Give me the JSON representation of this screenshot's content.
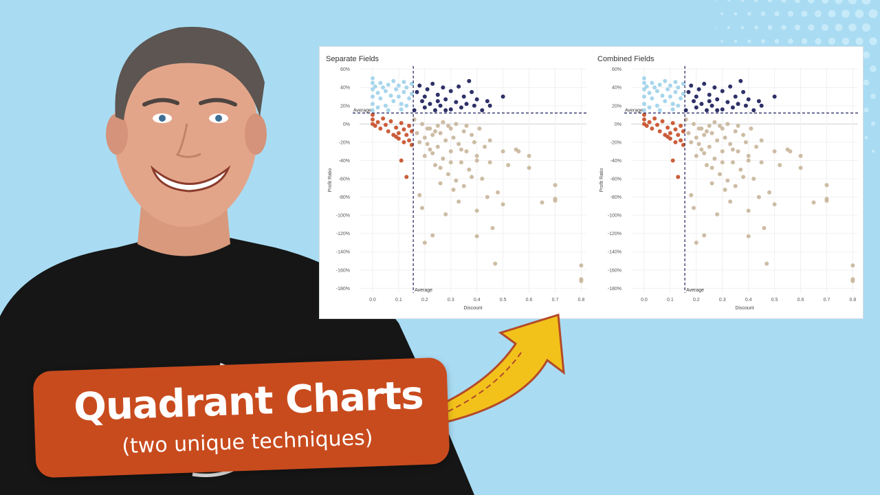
{
  "colors": {
    "background": "#a9dcf3",
    "quadrant_low_discount_high_profit": "#9fd3ea",
    "quadrant_high_discount_high_profit": "#1c1f5a",
    "quadrant_low_discount_low_profit": "#c8502a",
    "quadrant_high_discount_low_profit": "#c9b69c",
    "banner": "#c84b1e",
    "arrow": "#f2c21b",
    "arrow_stripe": "#b34a2a"
  },
  "banner": {
    "title": "Quadrant Charts",
    "subtitle": "(two unique techniques)"
  },
  "icons": {
    "arrow": "curved-arrow-icon"
  },
  "chart_data": [
    {
      "type": "scatter",
      "title": "Separate Fields",
      "xlabel": "Discount",
      "ylabel": "Profit Ratio",
      "xlim": [
        -0.05,
        0.82
      ],
      "ylim": [
        -1.85,
        0.62
      ],
      "x_ticks": [
        "0.0",
        "0.1",
        "0.2",
        "0.3",
        "0.4",
        "0.5",
        "0.6",
        "0.7",
        "0.8"
      ],
      "y_ticks": [
        "60%",
        "40%",
        "20%",
        "0%",
        "-20%",
        "-40%",
        "-60%",
        "-80%",
        "-100%",
        "-120%",
        "-140%",
        "-160%",
        "-180%"
      ],
      "grid": true,
      "reference_lines": {
        "x_average": 0.156,
        "y_average": 0.12,
        "x_average_label": "Average",
        "y_average_label": "Average"
      }
    },
    {
      "type": "scatter",
      "title": "Combined Fields",
      "xlabel": "Discount",
      "ylabel": "Profit Ratio",
      "xlim": [
        -0.05,
        0.82
      ],
      "ylim": [
        -1.85,
        0.62
      ],
      "x_ticks": [
        "0.0",
        "0.1",
        "0.2",
        "0.3",
        "0.4",
        "0.5",
        "0.6",
        "0.7",
        "0.8"
      ],
      "y_ticks": [
        "60%",
        "40%",
        "20%",
        "0%",
        "-20%",
        "-40%",
        "-60%",
        "-80%",
        "-100%",
        "-120%",
        "-140%",
        "-160%",
        "-180%"
      ],
      "grid": true,
      "reference_lines": {
        "x_average": 0.156,
        "y_average": 0.12,
        "x_average_label": "Average",
        "y_average_label": "Average"
      }
    }
  ],
  "points": [
    [
      0.0,
      0.5
    ],
    [
      0.0,
      0.45
    ],
    [
      0.0,
      0.38
    ],
    [
      0.0,
      0.3
    ],
    [
      0.0,
      0.22
    ],
    [
      0.0,
      0.15
    ],
    [
      0.0,
      0.1
    ],
    [
      0.01,
      0.41
    ],
    [
      0.02,
      0.34
    ],
    [
      0.03,
      0.45
    ],
    [
      0.03,
      0.28
    ],
    [
      0.04,
      0.4
    ],
    [
      0.05,
      0.36
    ],
    [
      0.05,
      0.2
    ],
    [
      0.06,
      0.43
    ],
    [
      0.07,
      0.31
    ],
    [
      0.08,
      0.47
    ],
    [
      0.08,
      0.25
    ],
    [
      0.09,
      0.38
    ],
    [
      0.1,
      0.42
    ],
    [
      0.1,
      0.3
    ],
    [
      0.11,
      0.22
    ],
    [
      0.12,
      0.46
    ],
    [
      0.12,
      0.35
    ],
    [
      0.13,
      0.4
    ],
    [
      0.14,
      0.28
    ],
    [
      0.15,
      0.44
    ],
    [
      0.15,
      0.33
    ],
    [
      0.02,
      0.18
    ],
    [
      0.06,
      0.15
    ],
    [
      0.11,
      0.16
    ],
    [
      0.13,
      0.2
    ],
    [
      0.16,
      0.15
    ],
    [
      0.17,
      0.35
    ],
    [
      0.18,
      0.42
    ],
    [
      0.19,
      0.25
    ],
    [
      0.2,
      0.3
    ],
    [
      0.2,
      0.18
    ],
    [
      0.21,
      0.38
    ],
    [
      0.22,
      0.22
    ],
    [
      0.23,
      0.44
    ],
    [
      0.24,
      0.15
    ],
    [
      0.25,
      0.32
    ],
    [
      0.26,
      0.2
    ],
    [
      0.27,
      0.4
    ],
    [
      0.28,
      0.27
    ],
    [
      0.3,
      0.36
    ],
    [
      0.3,
      0.16
    ],
    [
      0.32,
      0.24
    ],
    [
      0.33,
      0.41
    ],
    [
      0.34,
      0.18
    ],
    [
      0.35,
      0.3
    ],
    [
      0.36,
      0.22
    ],
    [
      0.37,
      0.47
    ],
    [
      0.38,
      0.35
    ],
    [
      0.39,
      0.2
    ],
    [
      0.4,
      0.27
    ],
    [
      0.42,
      0.15
    ],
    [
      0.44,
      0.25
    ],
    [
      0.45,
      0.2
    ],
    [
      0.5,
      0.3
    ],
    [
      0.28,
      0.15
    ],
    [
      0.25,
      0.25
    ],
    [
      0.0,
      0.05
    ],
    [
      0.0,
      0.0
    ],
    [
      0.01,
      -0.02
    ],
    [
      0.02,
      0.02
    ],
    [
      0.03,
      -0.05
    ],
    [
      0.05,
      -0.01
    ],
    [
      0.06,
      -0.08
    ],
    [
      0.07,
      0.03
    ],
    [
      0.08,
      -0.12
    ],
    [
      0.09,
      -0.04
    ],
    [
      0.1,
      -0.1
    ],
    [
      0.1,
      -0.16
    ],
    [
      0.11,
      0.01
    ],
    [
      0.12,
      -0.06
    ],
    [
      0.12,
      -0.2
    ],
    [
      0.13,
      -0.12
    ],
    [
      0.14,
      -0.02
    ],
    [
      0.14,
      -0.18
    ],
    [
      0.15,
      -0.08
    ],
    [
      0.15,
      -0.23
    ],
    [
      0.11,
      -0.4
    ],
    [
      0.13,
      -0.58
    ],
    [
      0.09,
      -0.14
    ],
    [
      0.04,
      0.06
    ],
    [
      0.16,
      0.05
    ],
    [
      0.17,
      -0.1
    ],
    [
      0.18,
      -0.2
    ],
    [
      0.19,
      0.0
    ],
    [
      0.2,
      -0.15
    ],
    [
      0.2,
      -0.35
    ],
    [
      0.21,
      -0.05
    ],
    [
      0.22,
      -0.28
    ],
    [
      0.23,
      -0.12
    ],
    [
      0.24,
      -0.45
    ],
    [
      0.25,
      -0.02
    ],
    [
      0.25,
      -0.25
    ],
    [
      0.26,
      -0.1
    ],
    [
      0.27,
      -0.38
    ],
    [
      0.28,
      -0.18
    ],
    [
      0.29,
      -0.55
    ],
    [
      0.3,
      -0.05
    ],
    [
      0.3,
      -0.3
    ],
    [
      0.31,
      -0.15
    ],
    [
      0.32,
      -0.62
    ],
    [
      0.33,
      -0.22
    ],
    [
      0.34,
      -0.42
    ],
    [
      0.35,
      -0.08
    ],
    [
      0.35,
      -0.68
    ],
    [
      0.36,
      -0.3
    ],
    [
      0.37,
      -0.5
    ],
    [
      0.38,
      -0.12
    ],
    [
      0.39,
      -0.2
    ],
    [
      0.4,
      -0.35
    ],
    [
      0.4,
      -0.4
    ],
    [
      0.4,
      -0.95
    ],
    [
      0.4,
      -1.23
    ],
    [
      0.41,
      -0.05
    ],
    [
      0.42,
      -0.6
    ],
    [
      0.43,
      -0.25
    ],
    [
      0.44,
      -0.8
    ],
    [
      0.45,
      -0.42
    ],
    [
      0.45,
      -0.18
    ],
    [
      0.46,
      -1.14
    ],
    [
      0.47,
      -1.53
    ],
    [
      0.48,
      -0.75
    ],
    [
      0.5,
      -0.88
    ],
    [
      0.5,
      -0.3
    ],
    [
      0.52,
      -0.45
    ],
    [
      0.55,
      -0.28
    ],
    [
      0.56,
      -0.3
    ],
    [
      0.6,
      -0.35
    ],
    [
      0.6,
      -0.48
    ],
    [
      0.65,
      -0.86
    ],
    [
      0.7,
      -0.67
    ],
    [
      0.7,
      -0.82
    ],
    [
      0.7,
      -0.84
    ],
    [
      0.8,
      -1.55
    ],
    [
      0.8,
      -1.7
    ],
    [
      0.8,
      -1.72
    ],
    [
      0.18,
      -0.78
    ],
    [
      0.19,
      -0.92
    ],
    [
      0.2,
      -1.3
    ],
    [
      0.23,
      -1.22
    ],
    [
      0.26,
      -0.65
    ],
    [
      0.28,
      -0.99
    ],
    [
      0.31,
      -0.72
    ],
    [
      0.33,
      -0.85
    ],
    [
      0.22,
      -0.05
    ],
    [
      0.24,
      -0.08
    ],
    [
      0.27,
      0.02
    ],
    [
      0.29,
      -0.02
    ],
    [
      0.32,
      0.0
    ],
    [
      0.36,
      -0.02
    ],
    [
      0.21,
      -0.22
    ],
    [
      0.23,
      -0.32
    ],
    [
      0.26,
      -0.48
    ],
    [
      0.3,
      -0.42
    ],
    [
      0.34,
      -0.28
    ],
    [
      0.38,
      -0.58
    ]
  ]
}
